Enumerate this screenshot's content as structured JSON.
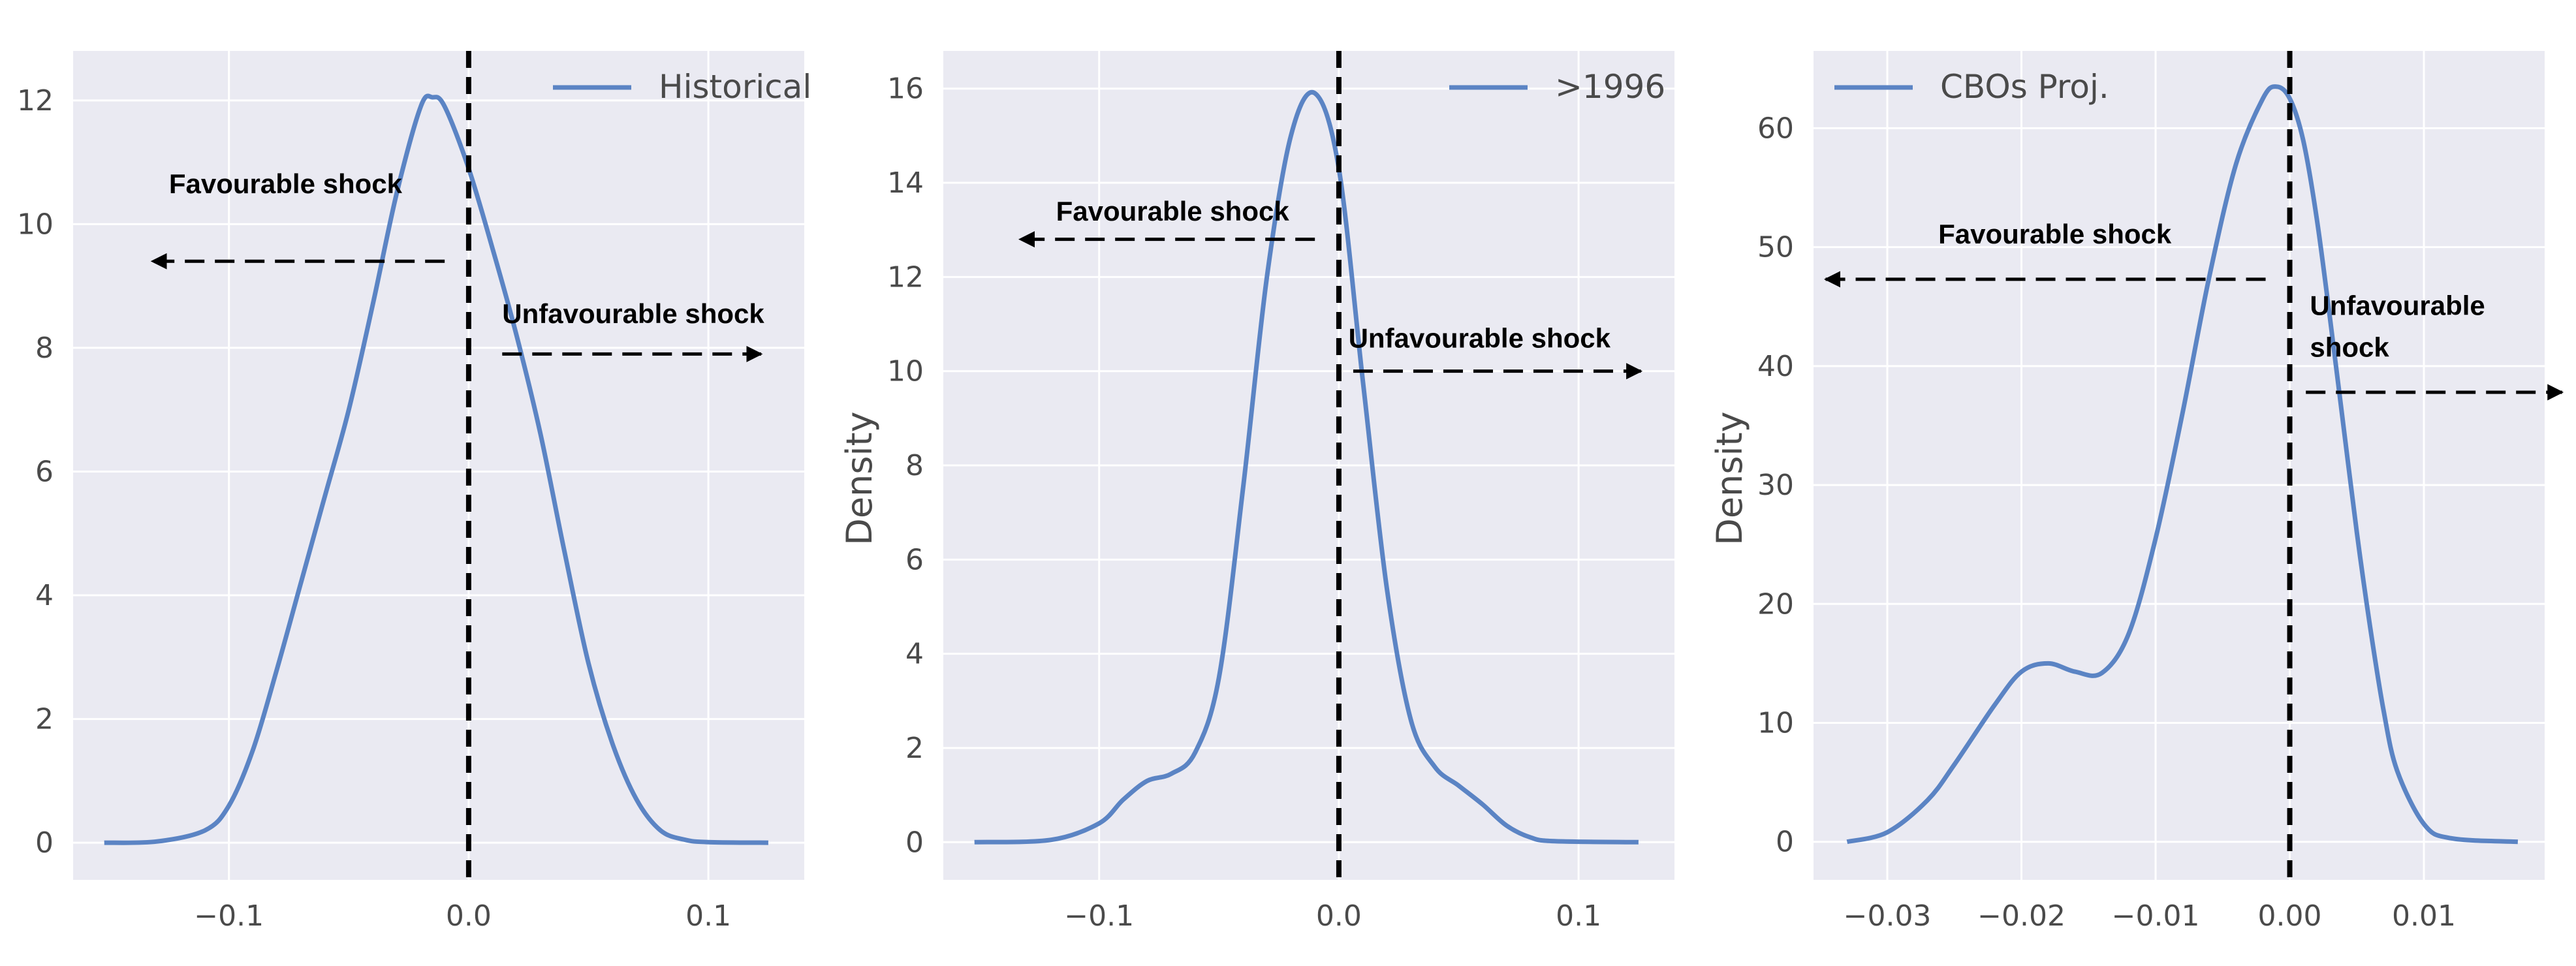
{
  "colors": {
    "plot_bg": "#EAEAF2",
    "grid": "#FFFFFF",
    "line": "#5B84C4",
    "zero_line": "#000000",
    "arrow": "#000000"
  },
  "chart_data": [
    {
      "type": "line",
      "legend": {
        "label": "Historical",
        "position": "top-right"
      },
      "xlabel": "",
      "ylabel": "",
      "xlim": [
        -0.165,
        0.14
      ],
      "ylim": [
        -0.6,
        12.8
      ],
      "xticks": [
        -0.1,
        0.0,
        0.1
      ],
      "xtick_labels": [
        "−0.1",
        "0.0",
        "0.1"
      ],
      "yticks": [
        0,
        2,
        4,
        6,
        8,
        10,
        12
      ],
      "ytick_labels": [
        "0",
        "2",
        "4",
        "6",
        "8",
        "10",
        "12"
      ],
      "grid": true,
      "vline_x": 0.0,
      "series": [
        {
          "x": [
            -0.152,
            -0.13,
            -0.11,
            -0.1,
            -0.09,
            -0.08,
            -0.07,
            -0.06,
            -0.05,
            -0.04,
            -0.03,
            -0.02,
            -0.015,
            -0.01,
            0.0,
            0.01,
            0.02,
            0.03,
            0.04,
            0.05,
            0.06,
            0.07,
            0.08,
            0.09,
            0.1,
            0.125
          ],
          "y": [
            0.0,
            0.02,
            0.2,
            0.6,
            1.5,
            2.8,
            4.2,
            5.6,
            7.0,
            8.7,
            10.5,
            11.9,
            12.05,
            11.9,
            10.9,
            9.6,
            8.2,
            6.6,
            4.7,
            2.9,
            1.6,
            0.7,
            0.2,
            0.05,
            0.01,
            0.0
          ]
        }
      ],
      "annotations": [
        {
          "text": "Favourable shock",
          "label_x": -0.125,
          "label_y": 10.5,
          "arrow_from": [
            -0.01,
            9.4
          ],
          "arrow_to": [
            -0.132,
            9.4
          ]
        },
        {
          "text": "Unfavourable shock",
          "label_x": 0.014,
          "label_y": 8.4,
          "arrow_from": [
            0.014,
            7.9
          ],
          "arrow_to": [
            0.122,
            7.9
          ]
        }
      ]
    },
    {
      "type": "line",
      "legend": {
        "label": ">1996",
        "position": "top-right"
      },
      "xlabel": "",
      "ylabel": "Density",
      "xlim": [
        -0.165,
        0.14
      ],
      "ylim": [
        -0.8,
        16.8
      ],
      "xticks": [
        -0.1,
        0.0,
        0.1
      ],
      "xtick_labels": [
        "−0.1",
        "0.0",
        "0.1"
      ],
      "yticks": [
        0,
        2,
        4,
        6,
        8,
        10,
        12,
        14,
        16
      ],
      "ytick_labels": [
        "0",
        "2",
        "4",
        "6",
        "8",
        "10",
        "12",
        "14",
        "16"
      ],
      "grid": true,
      "vline_x": 0.0,
      "series": [
        {
          "x": [
            -0.152,
            -0.12,
            -0.1,
            -0.09,
            -0.08,
            -0.07,
            -0.06,
            -0.05,
            -0.04,
            -0.03,
            -0.02,
            -0.01,
            0.0,
            0.01,
            0.02,
            0.03,
            0.04,
            0.05,
            0.06,
            0.07,
            0.08,
            0.09,
            0.125
          ],
          "y": [
            0.0,
            0.05,
            0.4,
            0.9,
            1.3,
            1.45,
            1.9,
            3.5,
            7.5,
            12.0,
            15.0,
            15.9,
            14.3,
            9.8,
            5.4,
            2.6,
            1.6,
            1.2,
            0.8,
            0.35,
            0.1,
            0.02,
            0.0
          ]
        }
      ],
      "annotations": [
        {
          "text": "Favourable shock",
          "label_x": -0.118,
          "label_y": 13.2,
          "arrow_from": [
            -0.01,
            12.8
          ],
          "arrow_to": [
            -0.133,
            12.8
          ]
        },
        {
          "text": "Unfavourable shock",
          "label_x": 0.004,
          "label_y": 10.5,
          "arrow_from": [
            0.006,
            10.0
          ],
          "arrow_to": [
            0.126,
            10.0
          ]
        }
      ]
    },
    {
      "type": "line",
      "legend": {
        "label": "CBOs Proj.",
        "position": "top-left"
      },
      "xlabel": "",
      "ylabel": "Density",
      "xlim": [
        -0.0355,
        0.019
      ],
      "ylim": [
        -3.2,
        66.5
      ],
      "xticks": [
        -0.03,
        -0.02,
        -0.01,
        0.0,
        0.01
      ],
      "xtick_labels": [
        "−0.03",
        "−0.02",
        "−0.01",
        "0.00",
        "0.01"
      ],
      "yticks": [
        0,
        10,
        20,
        30,
        40,
        50,
        60
      ],
      "ytick_labels": [
        "0",
        "10",
        "20",
        "30",
        "40",
        "50",
        "60"
      ],
      "grid": true,
      "vline_x": 0.0,
      "series": [
        {
          "x": [
            -0.033,
            -0.03,
            -0.027,
            -0.025,
            -0.022,
            -0.02,
            -0.018,
            -0.016,
            -0.014,
            -0.012,
            -0.01,
            -0.008,
            -0.006,
            -0.004,
            -0.002,
            -0.001,
            0.0,
            0.001,
            0.002,
            0.003,
            0.004,
            0.005,
            0.006,
            0.007,
            0.008,
            0.01,
            0.012,
            0.017
          ],
          "y": [
            0.0,
            0.8,
            3.5,
            6.5,
            11.5,
            14.3,
            15.0,
            14.3,
            14.2,
            17.5,
            25.5,
            36.0,
            47.5,
            57.0,
            62.5,
            63.5,
            62.5,
            59.0,
            52.5,
            44.0,
            35.0,
            26.0,
            18.0,
            11.0,
            6.0,
            1.5,
            0.3,
            0.0
          ]
        }
      ],
      "annotations": [
        {
          "text": "Favourable shock",
          "label_x": -0.0262,
          "label_y": 50.3,
          "arrow_from": [
            -0.0018,
            47.3
          ],
          "arrow_to": [
            -0.0346,
            47.3
          ]
        },
        {
          "text": "Unfavourable",
          "label_x": 0.0015,
          "label_y": 44.3,
          "arrow_from": null,
          "arrow_to": null
        },
        {
          "text": "shock",
          "label_x": 0.0015,
          "label_y": 40.8,
          "arrow_from": [
            0.0012,
            37.8
          ],
          "arrow_to": [
            0.0203,
            37.8
          ]
        }
      ]
    }
  ]
}
